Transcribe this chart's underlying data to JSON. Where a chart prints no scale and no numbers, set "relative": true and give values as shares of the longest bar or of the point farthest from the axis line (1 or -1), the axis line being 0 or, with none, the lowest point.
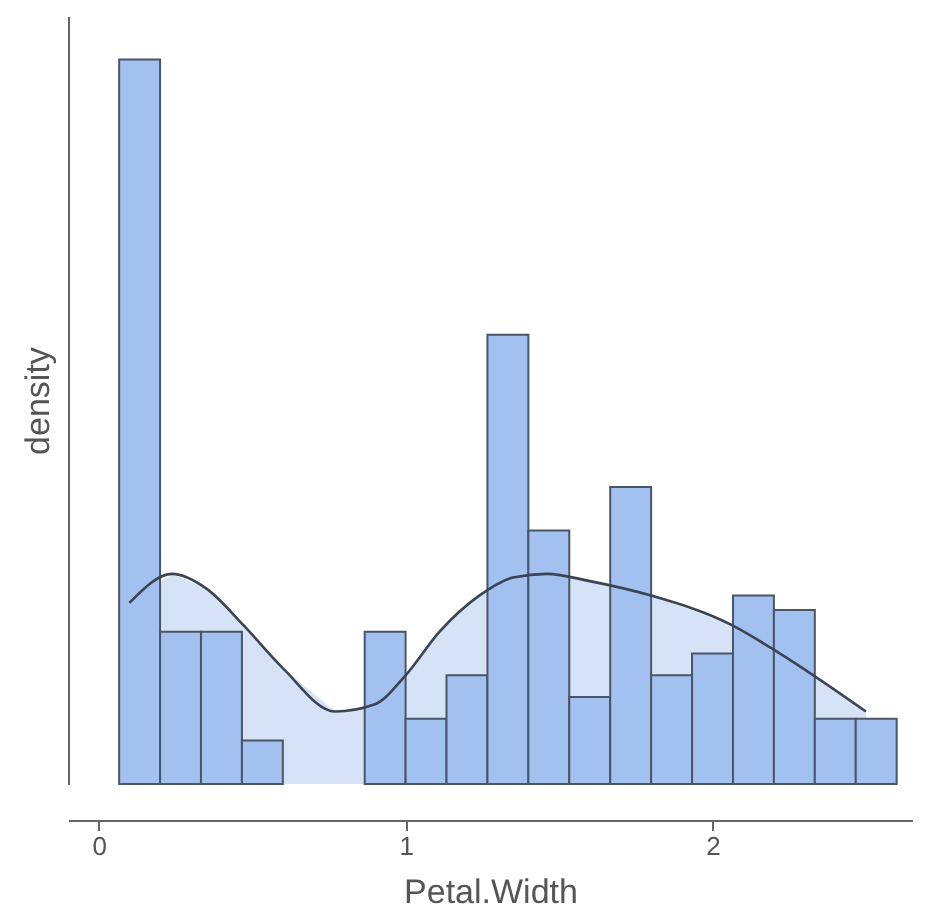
{
  "chart_data": {
    "type": "histogram",
    "xlabel": "Petal.Width",
    "ylabel": "density",
    "relative": true,
    "bins": [
      0.0667,
      0.2,
      0.3333,
      0.4667,
      0.6,
      0.7333,
      0.8667,
      1.0,
      1.1333,
      1.2667,
      1.4,
      1.5333,
      1.6667,
      1.8,
      1.9333,
      2.0667,
      2.2,
      2.3333,
      2.4667,
      2.6
    ],
    "values": [
      1,
      0.21,
      0.21,
      0.06,
      null,
      null,
      0.21,
      0.09,
      0.15,
      0.62,
      0.35,
      0.12,
      0.41,
      0.15,
      0.18,
      0.26,
      0.24,
      0.09,
      0.09
    ],
    "color": "#a3c1f0",
    "series": [
      {
        "type": "area",
        "color": "#d6e3f7",
        "x": [
          0.1,
          0.24,
          0.35,
          0.47,
          0.6,
          0.77,
          0.9,
          1.0,
          1.11,
          1.24,
          1.35,
          1.46,
          1.6,
          1.8,
          2.06,
          2.22,
          2.5
        ],
        "values": [
          0.25,
          0.29,
          0.27,
          0.22,
          0.16,
          0.1,
          0.11,
          0.15,
          0.21,
          0.26,
          0.285,
          0.29,
          0.28,
          0.26,
          0.22,
          0.18,
          0.1
        ]
      }
    ],
    "xlim": [
      -0.1,
      2.65
    ],
    "xticks": [
      0,
      1,
      2
    ]
  }
}
